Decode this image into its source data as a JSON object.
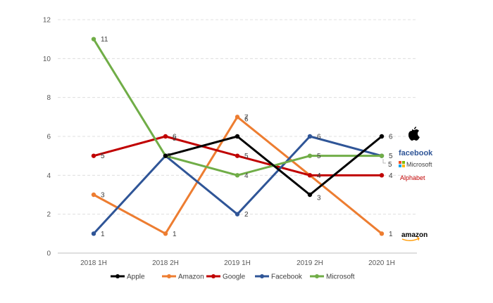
{
  "chart_data": {
    "type": "line",
    "title": "",
    "xlabel": "",
    "ylabel": "",
    "categories": [
      "2018 1H",
      "2018 2H",
      "2019 1H",
      "2019 2H",
      "2020 1H"
    ],
    "ylim": [
      0,
      12
    ],
    "yticks": [
      0,
      2,
      4,
      6,
      8,
      10,
      12
    ],
    "grid": true,
    "legend_position": "bottom",
    "series": [
      {
        "name": "Apple",
        "color": "#000000",
        "values": [
          null,
          5,
          6,
          3,
          6
        ]
      },
      {
        "name": "Amazon",
        "color": "#ed7d31",
        "values": [
          3,
          1,
          7,
          4,
          1
        ]
      },
      {
        "name": "Google",
        "color": "#c00000",
        "values": [
          5,
          6,
          5,
          4,
          4
        ]
      },
      {
        "name": "Facebook",
        "color": "#2f5597",
        "values": [
          1,
          5,
          2,
          6,
          5
        ]
      },
      {
        "name": "Microsoft",
        "color": "#70ad47",
        "values": [
          11,
          5,
          4,
          5,
          5
        ]
      }
    ],
    "end_logos": [
      {
        "name": "apple-logo",
        "text": "",
        "color": "#000000"
      },
      {
        "name": "facebook-logo",
        "text": "facebook",
        "color": "#2f5597"
      },
      {
        "name": "microsoft-logo",
        "text": "Microsoft",
        "color": "#404040"
      },
      {
        "name": "alphabet-logo",
        "text": "Alphabet",
        "color": "#c00000"
      },
      {
        "name": "amazon-logo",
        "text": "amazon",
        "color": "#000000"
      }
    ]
  }
}
